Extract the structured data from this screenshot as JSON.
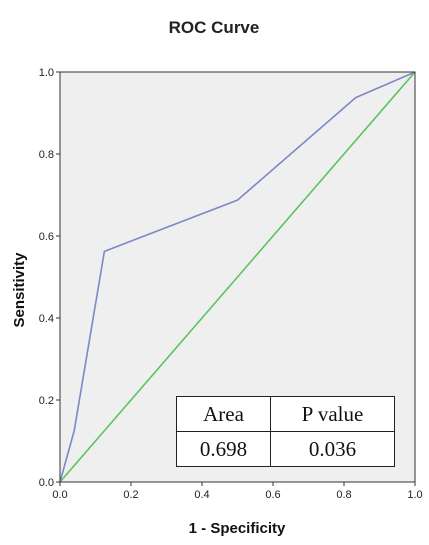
{
  "colors": {
    "plot_background": "#efefef",
    "roc_line": "#7b88c9",
    "reference_line": "#58c55d",
    "axis": "#333333"
  },
  "chart_data": {
    "type": "line",
    "title": "ROC Curve",
    "xlabel": "1 - Specificity",
    "ylabel": "Sensitivity",
    "xlim": [
      0,
      1
    ],
    "ylim": [
      0,
      1
    ],
    "xticks": [
      "0.0",
      "0.2",
      "0.4",
      "0.6",
      "0.8",
      "1.0"
    ],
    "yticks": [
      "0.0",
      "0.2",
      "0.4",
      "0.6",
      "0.8",
      "1.0"
    ],
    "grid": false,
    "series": [
      {
        "x": [
          0.0,
          0.04,
          0.125,
          0.5,
          0.833,
          1.0
        ],
        "y": [
          0.0,
          0.125,
          0.5625,
          0.6875,
          0.9375,
          1.0
        ],
        "color": "#7b88c9"
      },
      {
        "x": [
          0.0,
          1.0
        ],
        "y": [
          0.0,
          1.0
        ],
        "color": "#58c55d"
      }
    ]
  },
  "stats_table": {
    "headers": [
      "Area",
      "P value"
    ],
    "values": [
      "0.698",
      "0.036"
    ]
  }
}
